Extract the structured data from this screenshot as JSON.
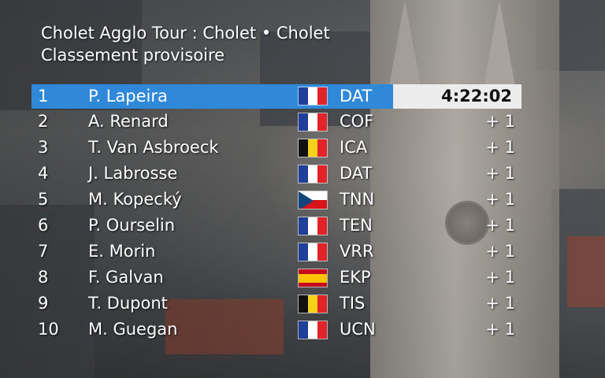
{
  "header": {
    "line1": "Cholet Agglo Tour : Cholet •  Cholet",
    "line2": "Classement provisoire"
  },
  "colors": {
    "leader_highlight": "#2f88d8",
    "time_box": "#ececec"
  },
  "standings": [
    {
      "pos": "1",
      "name": "P. Lapeira",
      "flag": "france-flag-icon",
      "team": "DAT",
      "gap": "4:22:02"
    },
    {
      "pos": "2",
      "name": "A. Renard",
      "flag": "france-flag-icon",
      "team": "COF",
      "gap": "+ 1"
    },
    {
      "pos": "3",
      "name": "T. Van Asbroeck",
      "flag": "belgium-flag-icon",
      "team": "ICA",
      "gap": "+ 1"
    },
    {
      "pos": "4",
      "name": "J. Labrosse",
      "flag": "france-flag-icon",
      "team": "DAT",
      "gap": "+ 1"
    },
    {
      "pos": "5",
      "name": "M. Kopecký",
      "flag": "czech-flag-icon",
      "team": "TNN",
      "gap": "+ 1"
    },
    {
      "pos": "6",
      "name": "P. Ourselin",
      "flag": "france-flag-icon",
      "team": "TEN",
      "gap": "+ 1"
    },
    {
      "pos": "7",
      "name": "E. Morin",
      "flag": "france-flag-icon",
      "team": "VRR",
      "gap": "+ 1"
    },
    {
      "pos": "8",
      "name": "F. Galvan",
      "flag": "spain-flag-icon",
      "team": "EKP",
      "gap": "+ 1"
    },
    {
      "pos": "9",
      "name": "T. Dupont",
      "flag": "belgium-flag-icon",
      "team": "TIS",
      "gap": "+ 1"
    },
    {
      "pos": "10",
      "name": "M. Guegan",
      "flag": "france-flag-icon",
      "team": "UCN",
      "gap": "+ 1"
    }
  ]
}
